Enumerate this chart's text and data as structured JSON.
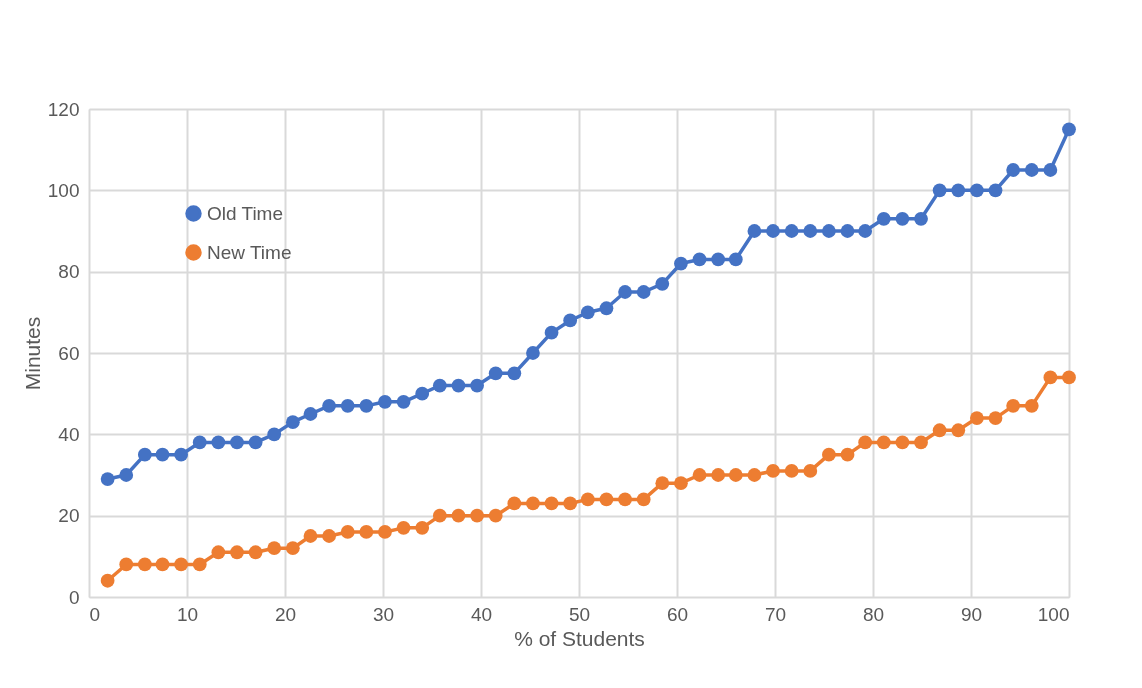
{
  "chart_data": {
    "type": "line",
    "xlabel": "% of Students",
    "ylabel": "Minutes",
    "x": [
      1.9,
      3.8,
      5.7,
      7.5,
      9.4,
      11.3,
      13.2,
      15.1,
      17.0,
      18.9,
      20.8,
      22.6,
      24.5,
      26.4,
      28.3,
      30.2,
      32.1,
      34.0,
      35.8,
      37.7,
      39.6,
      41.5,
      43.4,
      45.3,
      47.2,
      49.1,
      50.9,
      52.8,
      54.7,
      56.6,
      58.5,
      60.4,
      62.3,
      64.2,
      66.0,
      67.9,
      69.8,
      71.7,
      73.6,
      75.5,
      77.4,
      79.2,
      81.1,
      83.0,
      84.9,
      86.8,
      88.7,
      90.6,
      92.5,
      94.3,
      96.2,
      98.1,
      100.0
    ],
    "series": [
      {
        "name": "Old Time",
        "color": "#4472c4",
        "values": [
          29,
          30,
          35,
          35,
          35,
          38,
          38,
          38,
          38,
          40,
          43,
          45,
          47,
          47,
          47,
          48,
          48,
          50,
          52,
          52,
          52,
          55,
          55,
          60,
          65,
          68,
          70,
          71,
          75,
          75,
          77,
          82,
          83,
          83,
          83,
          90,
          90,
          90,
          90,
          90,
          90,
          90,
          93,
          93,
          93,
          100,
          100,
          100,
          100,
          105,
          105,
          105,
          115
        ]
      },
      {
        "name": "New Time",
        "color": "#ed7d31",
        "values": [
          4,
          8,
          8,
          8,
          8,
          8,
          11,
          11,
          11,
          12,
          12,
          15,
          15,
          16,
          16,
          16,
          17,
          17,
          20,
          20,
          20,
          20,
          23,
          23,
          23,
          23,
          24,
          24,
          24,
          24,
          28,
          28,
          30,
          30,
          30,
          30,
          31,
          31,
          31,
          35,
          35,
          38,
          38,
          38,
          38,
          41,
          41,
          44,
          44,
          47,
          47,
          54,
          54
        ]
      }
    ],
    "xlim": [
      0,
      100
    ],
    "xticks": [
      0,
      10,
      20,
      30,
      40,
      50,
      60,
      70,
      80,
      90,
      100
    ],
    "ylim": [
      0,
      120
    ],
    "yticks": [
      0,
      20,
      40,
      60,
      80,
      100,
      120
    ],
    "grid": true,
    "legend": "top left",
    "marker": "circle",
    "line_style": "solid"
  }
}
